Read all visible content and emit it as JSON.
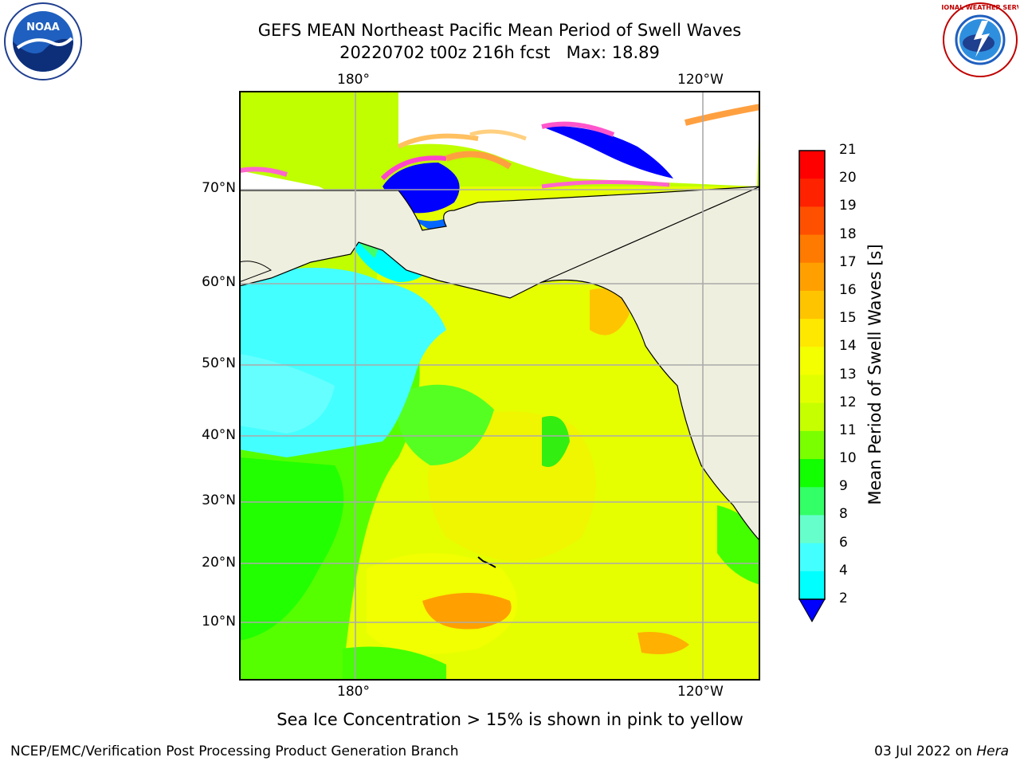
{
  "header": {
    "title_line1": "GEFS MEAN Northeast Pacific Mean Period of Swell Waves",
    "title_line2": "20220702 t00z 216h fcst   Max: 18.89"
  },
  "map": {
    "lon_labels": [
      "180°",
      "120°W"
    ],
    "lat_labels": [
      "70°N",
      "60°N",
      "50°N",
      "40°N",
      "30°N",
      "20°N",
      "10°N"
    ]
  },
  "colorbar": {
    "label": "Mean Period of Swell Waves [s]",
    "ticks": [
      "21",
      "20",
      "19",
      "18",
      "17",
      "16",
      "15",
      "14",
      "13",
      "12",
      "11",
      "10",
      "9",
      "8",
      "6",
      "4",
      "2"
    ],
    "colors": [
      "#ff0000",
      "#ff2200",
      "#ff5000",
      "#ff7a00",
      "#ffa000",
      "#ffc400",
      "#ffe800",
      "#f4ff00",
      "#e2ff00",
      "#c6ff00",
      "#7aff00",
      "#11ff00",
      "#33ff66",
      "#66ffcc",
      "#44ffff",
      "#00ffff",
      "#00ccff",
      "#0066ff"
    ],
    "extend_color": "#0000ff"
  },
  "footer": {
    "note": "Sea Ice Concentration > 15% is shown in pink to yellow",
    "credit": "NCEP/EMC/Verification Post Processing Product Generation Branch",
    "date": "03 Jul 2022 on ",
    "host": "Hera"
  },
  "logos": {
    "noaa_text": "NOAA",
    "nws_text": "NATIONAL WEATHER SERVICE"
  }
}
